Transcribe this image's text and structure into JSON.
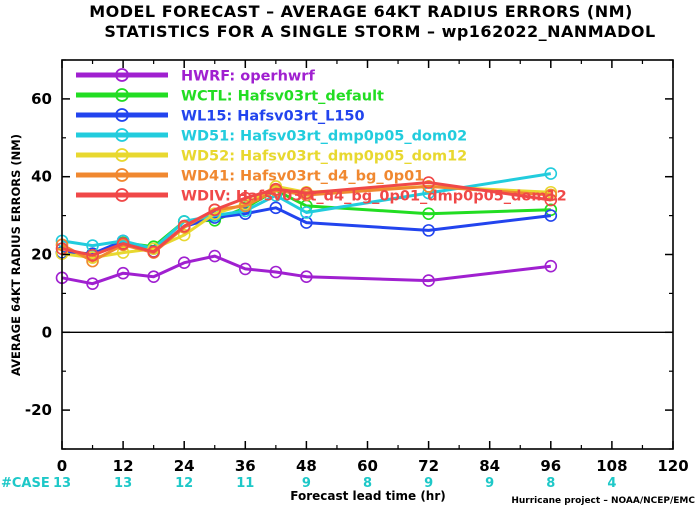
{
  "header": {
    "title_line1": "MODEL FORECAST – AVERAGE 64KT RADIUS ERRORS (NM)",
    "title_line2": "STATISTICS FOR A SINGLE STORM – wp162022_NANMADOL"
  },
  "credit": "Hurricane project – NOAA/NCEP/EMC",
  "case_label": "#CASE",
  "case_counts": [
    {
      "x": 0,
      "n": "13"
    },
    {
      "x": 12,
      "n": "13"
    },
    {
      "x": 24,
      "n": "12"
    },
    {
      "x": 36,
      "n": "11"
    },
    {
      "x": 48,
      "n": "9"
    },
    {
      "x": 60,
      "n": "8"
    },
    {
      "x": 72,
      "n": "9"
    },
    {
      "x": 84,
      "n": "9"
    },
    {
      "x": 96,
      "n": "8"
    },
    {
      "x": 108,
      "n": "4"
    }
  ],
  "colors": {
    "case_text": "#1ec8c8",
    "zero_line": "#000000",
    "frame": "#000000"
  },
  "chart_data": {
    "type": "line",
    "title": "MODEL FORECAST – AVERAGE 64KT RADIUS ERRORS (NM)",
    "subtitle": "STATISTICS FOR A SINGLE STORM – wp162022_NANMADOL",
    "xlabel": "Forecast lead time (hr)",
    "ylabel": "AVERAGE 64KT RADIUS ERRORS (NM)",
    "xlim": [
      0,
      120
    ],
    "ylim": [
      -30,
      70
    ],
    "xticks": [
      0,
      12,
      24,
      36,
      48,
      60,
      72,
      84,
      96,
      108,
      120
    ],
    "yticks": [
      -20,
      0,
      20,
      40,
      60
    ],
    "grid": false,
    "legend_position": "top-left",
    "series": [
      {
        "name": "HWRF: operhwrf",
        "color": "#a020d0",
        "x": [
          0,
          6,
          12,
          18,
          24,
          30,
          36,
          42,
          48,
          72,
          96
        ],
        "y": [
          14,
          12.5,
          15.2,
          14.3,
          17.9,
          19.6,
          16.3,
          15.5,
          14.3,
          13.3,
          17
        ]
      },
      {
        "name": "WCTL: Hafsv03rt_default",
        "color": "#22dd22",
        "x": [
          0,
          6,
          12,
          18,
          24,
          30,
          36,
          42,
          48,
          72,
          96
        ],
        "y": [
          20.5,
          20.2,
          23,
          22,
          28.5,
          28.8,
          32,
          36.5,
          32.5,
          30.5,
          31.5
        ]
      },
      {
        "name": "WL15: Hafsv03rt_L150",
        "color": "#2244ee",
        "x": [
          0,
          6,
          12,
          18,
          24,
          30,
          36,
          42,
          48,
          72,
          96
        ],
        "y": [
          20.5,
          20.2,
          23.5,
          20.8,
          27.2,
          29.5,
          30.5,
          32,
          28.2,
          26.2,
          30
        ]
      },
      {
        "name": "WD51: Hafsv03rt_dmp0p05_dom02",
        "color": "#22ccdd",
        "x": [
          0,
          6,
          12,
          18,
          24,
          30,
          36,
          42,
          48,
          72,
          96
        ],
        "y": [
          23.5,
          22.3,
          23.5,
          21.5,
          28.5,
          30,
          31.2,
          35.2,
          30.8,
          35.8,
          40.8
        ]
      },
      {
        "name": "WD52: Hafsv03rt_dmp0p05_dom12",
        "color": "#e8d830",
        "x": [
          0,
          6,
          12,
          18,
          24,
          30,
          36,
          42,
          48,
          72,
          96
        ],
        "y": [
          20.2,
          19.2,
          20.5,
          21.5,
          25,
          30.5,
          33,
          37.5,
          36,
          37.5,
          36
        ]
      },
      {
        "name": "WD41: Hafsv03rt_d4_bg_0p01",
        "color": "#f08830",
        "x": [
          0,
          6,
          12,
          18,
          24,
          30,
          36,
          42,
          48,
          72,
          96
        ],
        "y": [
          22.5,
          18.3,
          22.5,
          20.5,
          27,
          31.5,
          32.5,
          36.5,
          35.3,
          37.5,
          35.3
        ]
      },
      {
        "name": "WDIV: Hafsv03rt_d4_bg_0p01_dmp0p05_dom12",
        "color": "#f04848",
        "x": [
          0,
          6,
          12,
          18,
          24,
          30,
          36,
          42,
          48,
          72,
          96
        ],
        "y": [
          21.5,
          19.8,
          22.8,
          20.7,
          27.3,
          31.5,
          34.5,
          36.8,
          35.8,
          38.5,
          34
        ]
      }
    ]
  }
}
